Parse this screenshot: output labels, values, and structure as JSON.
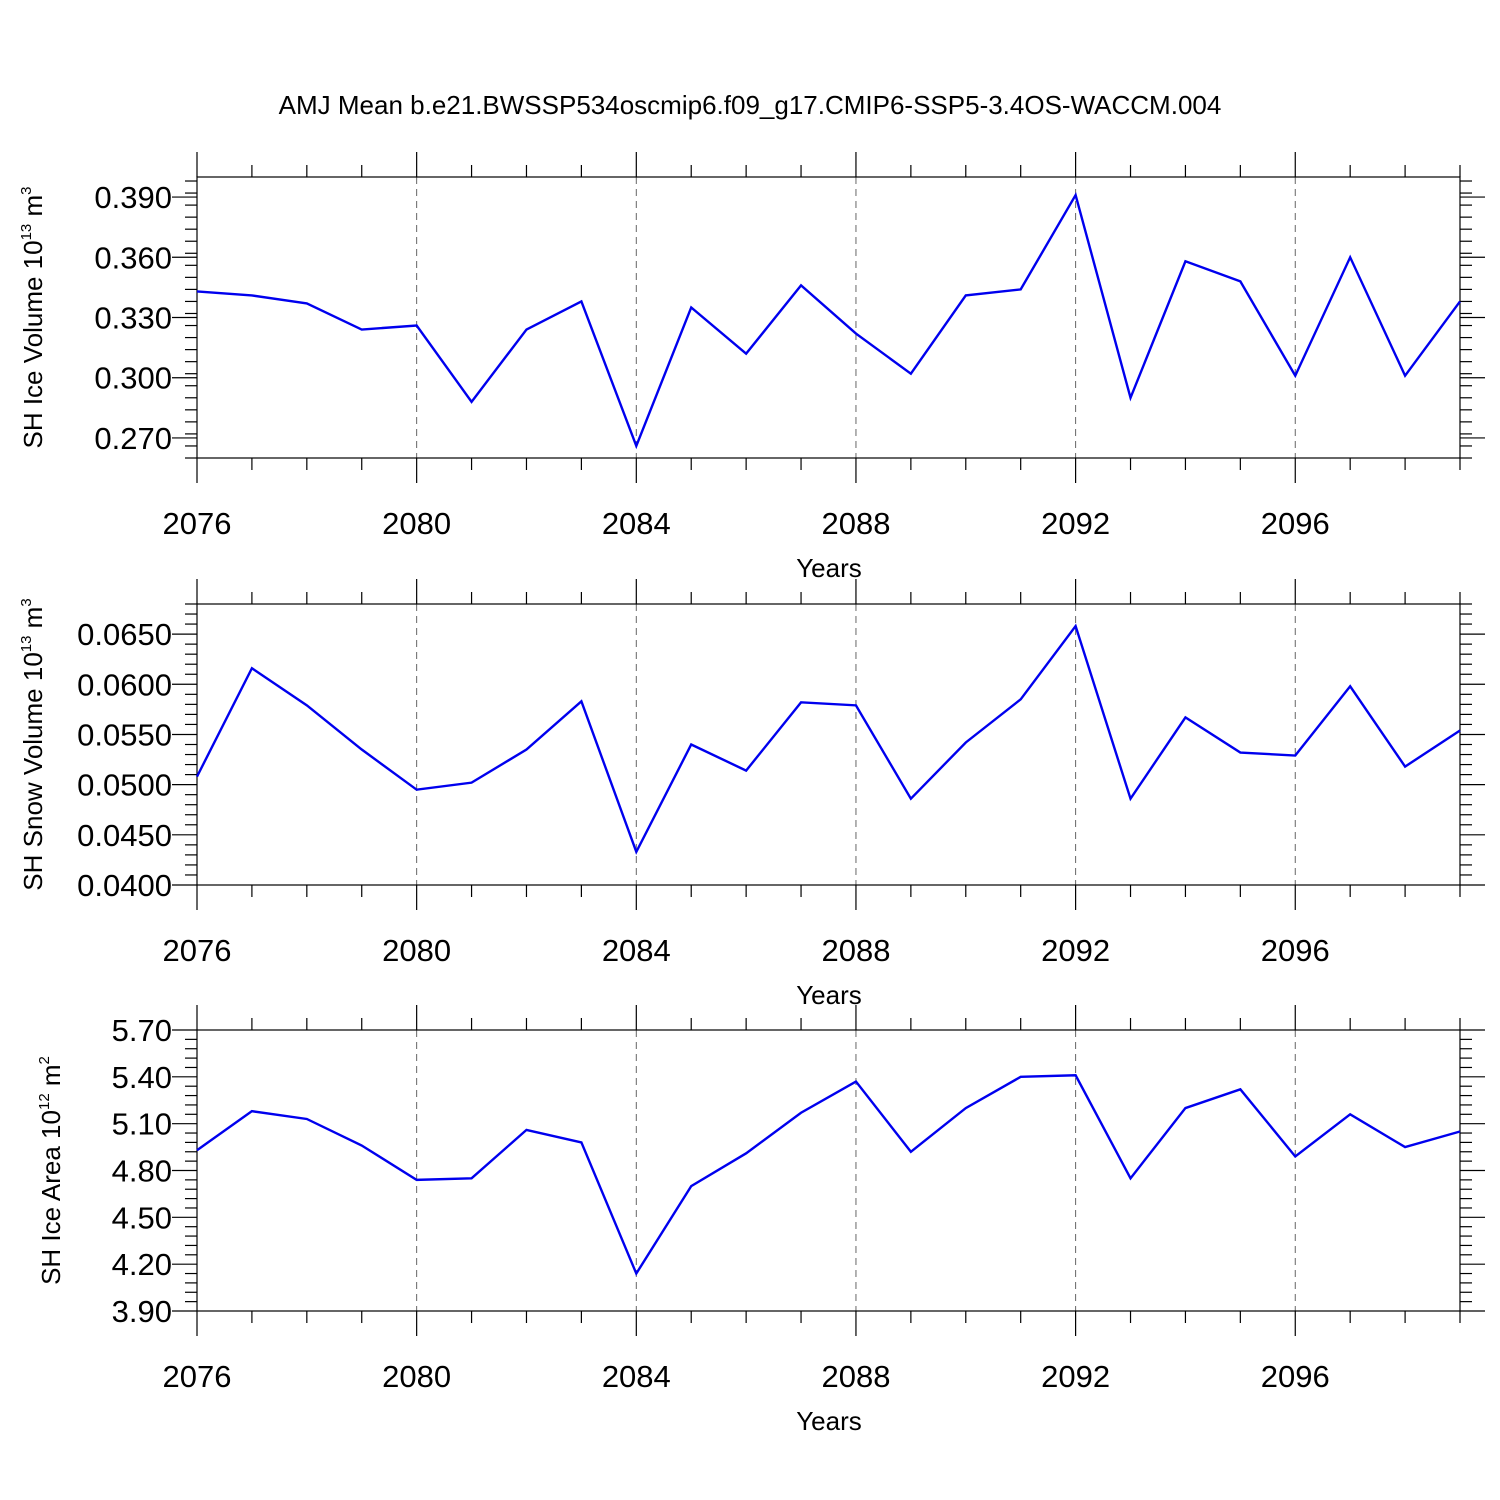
{
  "title": "AMJ Mean b.e21.BWSSP534oscmip6.f09_g17.CMIP6-SSP5-3.4OS-WACCM.004",
  "colors": {
    "line": "#0000ee",
    "axis": "#000000",
    "grid": "#666666"
  },
  "chart_data": [
    {
      "type": "line",
      "ylabel_main": "SH Ice Volume 10",
      "ylabel_exp": "13",
      "ylabel_unit": "m",
      "ylabel_unit_exp": "3",
      "xlabel": "Years",
      "xlim": [
        2076,
        2099
      ],
      "ylim": [
        0.26,
        0.4
      ],
      "yticks": [
        "0.270",
        "0.300",
        "0.330",
        "0.360",
        "0.390"
      ],
      "ytick_values": [
        0.27,
        0.3,
        0.33,
        0.36,
        0.39
      ],
      "yminor_step": 0.006,
      "xticks": [
        "2076",
        "2080",
        "2084",
        "2088",
        "2092",
        "2096"
      ],
      "xtick_values": [
        2076,
        2080,
        2084,
        2088,
        2092,
        2096
      ],
      "grid_x": [
        2080,
        2084,
        2088,
        2092,
        2096
      ],
      "x": [
        2076,
        2077,
        2078,
        2079,
        2080,
        2081,
        2082,
        2083,
        2084,
        2085,
        2086,
        2087,
        2088,
        2089,
        2090,
        2091,
        2092,
        2093,
        2094,
        2095,
        2096,
        2097,
        2098,
        2099
      ],
      "values": [
        0.343,
        0.341,
        0.337,
        0.324,
        0.326,
        0.288,
        0.324,
        0.338,
        0.266,
        0.335,
        0.312,
        0.346,
        0.322,
        0.302,
        0.341,
        0.344,
        0.391,
        0.29,
        0.358,
        0.348,
        0.301,
        0.36,
        0.301,
        0.338
      ]
    },
    {
      "type": "line",
      "ylabel_main": "SH Snow Volume 10",
      "ylabel_exp": "13",
      "ylabel_unit": "m",
      "ylabel_unit_exp": "3",
      "xlabel": "Years",
      "xlim": [
        2076,
        2099
      ],
      "ylim": [
        0.04,
        0.068
      ],
      "yticks": [
        "0.0400",
        "0.0450",
        "0.0500",
        "0.0550",
        "0.0600",
        "0.0650"
      ],
      "ytick_values": [
        0.04,
        0.045,
        0.05,
        0.055,
        0.06,
        0.065
      ],
      "yminor_step": 0.001,
      "xticks": [
        "2076",
        "2080",
        "2084",
        "2088",
        "2092",
        "2096"
      ],
      "xtick_values": [
        2076,
        2080,
        2084,
        2088,
        2092,
        2096
      ],
      "grid_x": [
        2080,
        2084,
        2088,
        2092,
        2096
      ],
      "x": [
        2076,
        2077,
        2078,
        2079,
        2080,
        2081,
        2082,
        2083,
        2084,
        2085,
        2086,
        2087,
        2088,
        2089,
        2090,
        2091,
        2092,
        2093,
        2094,
        2095,
        2096,
        2097,
        2098,
        2099
      ],
      "values": [
        0.0508,
        0.0616,
        0.0579,
        0.0535,
        0.0495,
        0.0502,
        0.0535,
        0.0583,
        0.0433,
        0.054,
        0.0514,
        0.0582,
        0.0579,
        0.0486,
        0.0542,
        0.0585,
        0.0658,
        0.0486,
        0.0567,
        0.0532,
        0.0529,
        0.0598,
        0.0518,
        0.0554
      ]
    },
    {
      "type": "line",
      "ylabel_main": "SH Ice Area 10",
      "ylabel_exp": "12",
      "ylabel_unit": "m",
      "ylabel_unit_exp": "2",
      "xlabel": "Years",
      "xlim": [
        2076,
        2099
      ],
      "ylim": [
        3.9,
        5.7
      ],
      "yticks": [
        "3.90",
        "4.20",
        "4.50",
        "4.80",
        "5.10",
        "5.40",
        "5.70"
      ],
      "ytick_values": [
        3.9,
        4.2,
        4.5,
        4.8,
        5.1,
        5.4,
        5.7
      ],
      "yminor_step": 0.06,
      "xticks": [
        "2076",
        "2080",
        "2084",
        "2088",
        "2092",
        "2096"
      ],
      "xtick_values": [
        2076,
        2080,
        2084,
        2088,
        2092,
        2096
      ],
      "grid_x": [
        2080,
        2084,
        2088,
        2092,
        2096
      ],
      "x": [
        2076,
        2077,
        2078,
        2079,
        2080,
        2081,
        2082,
        2083,
        2084,
        2085,
        2086,
        2087,
        2088,
        2089,
        2090,
        2091,
        2092,
        2093,
        2094,
        2095,
        2096,
        2097,
        2098,
        2099
      ],
      "values": [
        4.93,
        5.18,
        5.13,
        4.96,
        4.74,
        4.75,
        5.06,
        4.98,
        4.14,
        4.7,
        4.91,
        5.17,
        5.37,
        4.92,
        5.2,
        5.4,
        5.41,
        4.75,
        5.2,
        5.32,
        4.89,
        5.16,
        4.95,
        5.05
      ]
    }
  ]
}
